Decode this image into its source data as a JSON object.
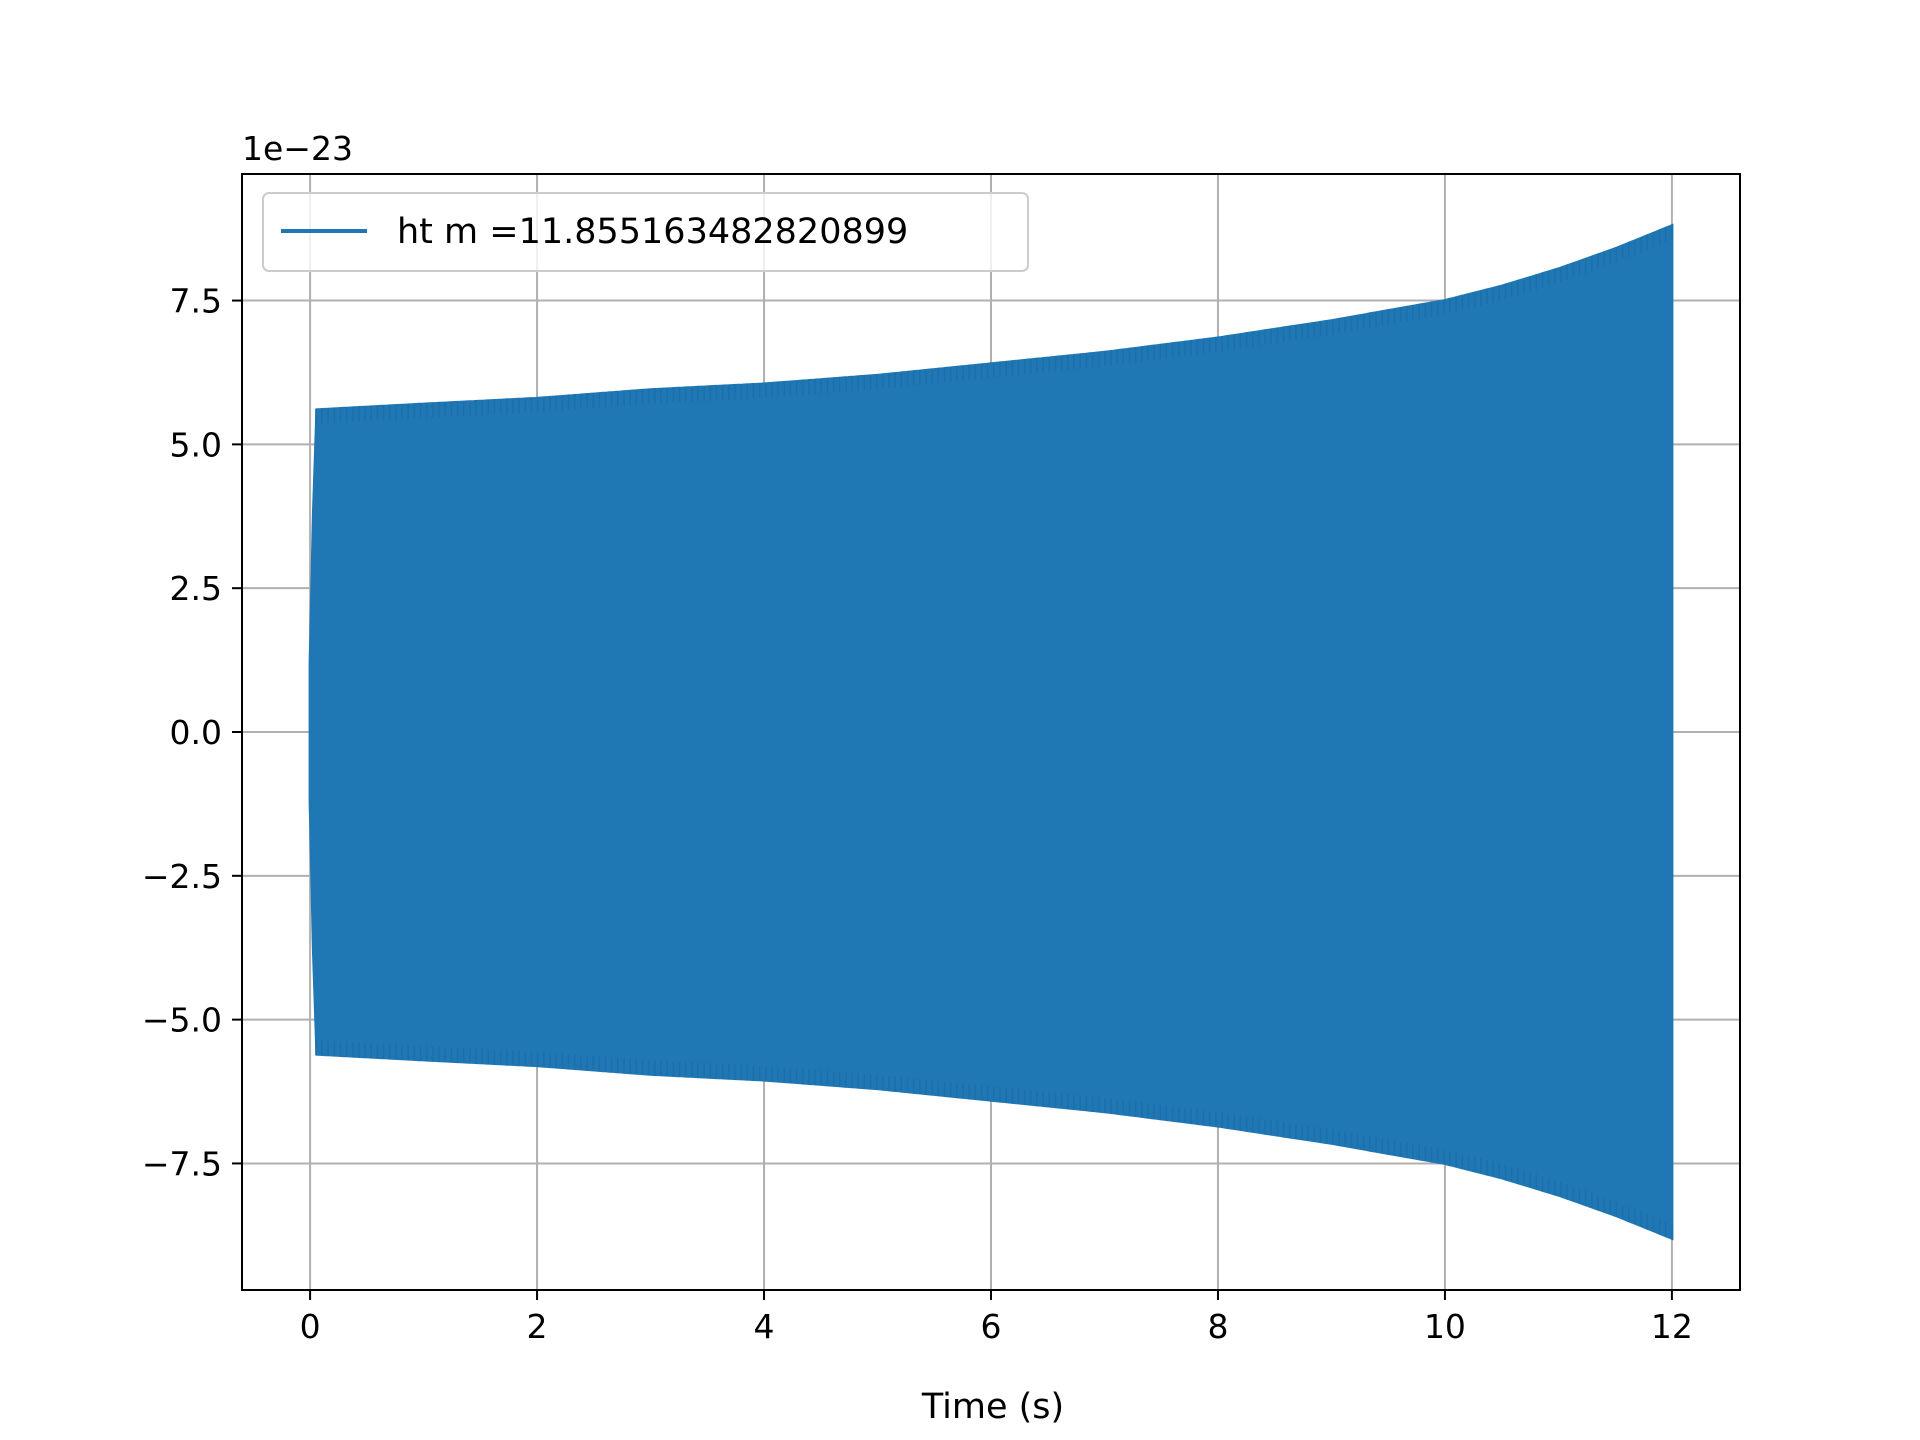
{
  "chart_data": {
    "type": "line",
    "title": "",
    "xlabel": "Time (s)",
    "ylabel": "",
    "y_offset_label": "1e−23",
    "xlim": [
      -0.6,
      12.6
    ],
    "ylim": [
      -9.7,
      9.7
    ],
    "x_ticks": [
      {
        "value": 0,
        "label": "0"
      },
      {
        "value": 2,
        "label": "2"
      },
      {
        "value": 4,
        "label": "4"
      },
      {
        "value": 6,
        "label": "6"
      },
      {
        "value": 8,
        "label": "8"
      },
      {
        "value": 10,
        "label": "10"
      },
      {
        "value": 12,
        "label": "12"
      }
    ],
    "y_ticks": [
      {
        "value": -7.5,
        "label": "−7.5"
      },
      {
        "value": -5.0,
        "label": "−5.0"
      },
      {
        "value": -2.5,
        "label": "−2.5"
      },
      {
        "value": 0.0,
        "label": "0.0"
      },
      {
        "value": 2.5,
        "label": "2.5"
      },
      {
        "value": 5.0,
        "label": "5.0"
      },
      {
        "value": 7.5,
        "label": "7.5"
      }
    ],
    "grid": true,
    "legend_position": "top-left",
    "series": [
      {
        "name": "ht m =11.855163482820899",
        "color": "#1f77b4",
        "envelope_x": [
          0.0,
          0.05,
          1,
          2,
          3,
          4,
          5,
          6,
          7,
          8,
          9,
          10,
          10.5,
          11,
          11.5,
          12.0
        ],
        "envelope_amplitude": [
          1.2,
          5.6,
          5.7,
          5.8,
          5.95,
          6.05,
          6.2,
          6.4,
          6.6,
          6.85,
          7.15,
          7.5,
          7.75,
          8.05,
          8.4,
          8.8
        ],
        "x_end": 12.0
      }
    ]
  }
}
